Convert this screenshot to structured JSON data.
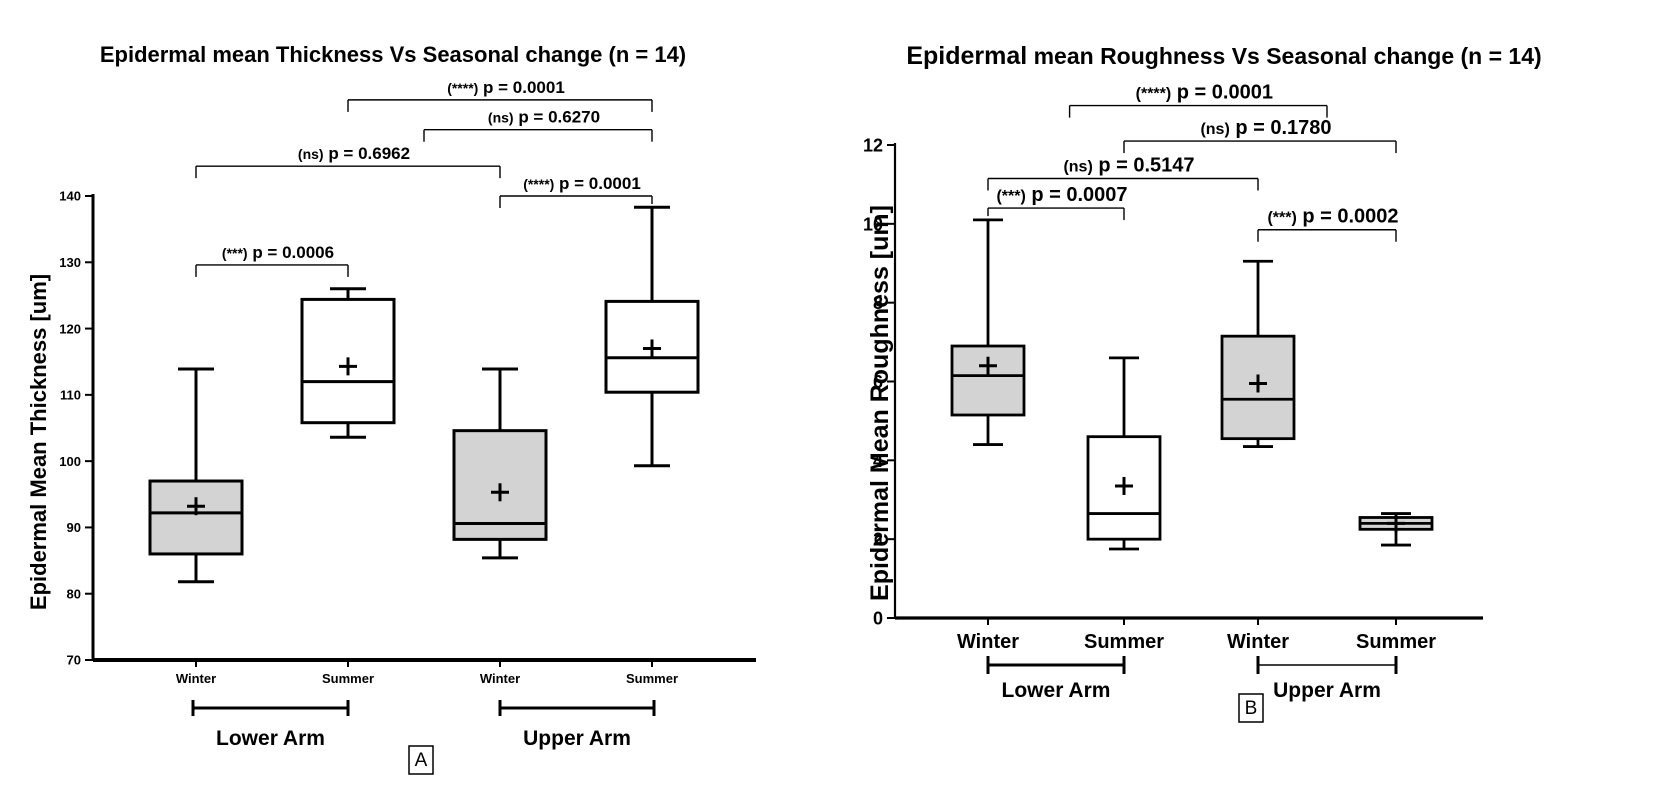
{
  "chart_data": [
    {
      "type": "box",
      "panel": "A",
      "title": "Epidermal mean Thickness Vs Seasonal change (n = 14)",
      "ylabel": "Epidermal Mean Thickness [um]",
      "ylim": [
        70,
        140
      ],
      "yticks": [
        "70",
        "80",
        "90",
        "100",
        "110",
        "120",
        "130",
        "140"
      ],
      "ytick_values": [
        70,
        80,
        90,
        100,
        110,
        120,
        130,
        140
      ],
      "categories": [
        "Winter",
        "Summer",
        "Winter",
        "Summer"
      ],
      "groups": [
        "Lower Arm",
        "Upper Arm"
      ],
      "boxes": [
        {
          "category": "Winter",
          "group": "Lower Arm",
          "min": 81.8,
          "q1": 86.0,
          "median": 92.2,
          "q3": 97.0,
          "max": 113.9,
          "mean": 93.2,
          "fill": "#d3d3d3"
        },
        {
          "category": "Summer",
          "group": "Lower Arm",
          "min": 103.6,
          "q1": 105.8,
          "median": 112.0,
          "q3": 124.4,
          "max": 126.0,
          "mean": 114.3,
          "fill": "#ffffff"
        },
        {
          "category": "Winter",
          "group": "Upper Arm",
          "min": 85.4,
          "q1": 88.2,
          "median": 90.6,
          "q3": 104.6,
          "max": 113.9,
          "mean": 95.3,
          "fill": "#d3d3d3"
        },
        {
          "category": "Summer",
          "group": "Upper Arm",
          "min": 99.3,
          "q1": 110.4,
          "median": 115.6,
          "q3": 124.1,
          "max": 138.3,
          "mean": 117.0,
          "fill": "#ffffff"
        }
      ],
      "comparisons": [
        {
          "from": 0,
          "to": 1,
          "level": 129.6,
          "stars": "(***)",
          "label": "p = 0.0006"
        },
        {
          "from": 2,
          "to": 3,
          "level": 140.0,
          "stars": "(****)",
          "label": "p = 0.0001"
        },
        {
          "from": 0,
          "to": 2,
          "level": 144.5,
          "stars": "(ns)",
          "label": "p = 0.6962"
        },
        {
          "from": 1.5,
          "to": 3,
          "level": 150.0,
          "stars": "(ns)",
          "label": "p = 0.6270"
        },
        {
          "from": 1,
          "to": 3,
          "level": 154.5,
          "stars": "(****)",
          "label": "p = 0.0001"
        }
      ]
    },
    {
      "type": "box",
      "panel": "B",
      "title_bold": "Epidermal",
      "title_rest": " mean Roughness Vs Seasonal change (n = 14)",
      "ylabel": "Epidermal Mean Roughness [um]",
      "ylim": [
        0,
        12
      ],
      "yticks": [
        "0",
        "2",
        "4",
        "6",
        "8",
        "10",
        "12"
      ],
      "ytick_values": [
        0,
        2,
        4,
        6,
        8,
        10,
        12
      ],
      "categories": [
        "Winter",
        "Summer",
        "Winter",
        "Summer"
      ],
      "groups": [
        "Lower Arm",
        "Upper Arm"
      ],
      "boxes": [
        {
          "category": "Winter",
          "group": "Lower Arm",
          "min": 4.4,
          "q1": 5.15,
          "median": 6.15,
          "q3": 6.9,
          "max": 10.1,
          "mean": 6.4,
          "fill": "#d3d3d3"
        },
        {
          "category": "Summer",
          "group": "Lower Arm",
          "min": 1.75,
          "q1": 2.0,
          "median": 2.65,
          "q3": 4.6,
          "max": 6.6,
          "mean": 3.35,
          "fill": "#ffffff"
        },
        {
          "category": "Winter",
          "group": "Upper Arm",
          "min": 4.35,
          "q1": 4.55,
          "median": 5.55,
          "q3": 7.15,
          "max": 9.05,
          "mean": 5.95,
          "fill": "#d3d3d3"
        },
        {
          "category": "Summer",
          "group": "Upper Arm",
          "min": 1.85,
          "q1": 2.25,
          "median": 2.4,
          "q3": 2.55,
          "max": 2.65,
          "mean": 2.4,
          "fill": "#d3d3d3"
        }
      ],
      "comparisons": [
        {
          "from": 2,
          "to": 3,
          "level": 9.85,
          "stars": "(***)",
          "label": "p = 0.0002"
        },
        {
          "from": 0,
          "to": 1,
          "level": 10.4,
          "stars": "(***)",
          "label": "p = 0.0007"
        },
        {
          "from": 0,
          "to": 2,
          "level": 11.15,
          "stars": "(ns)",
          "label": "p = 0.5147"
        },
        {
          "from": 1,
          "to": 3,
          "level": 12.1,
          "stars": "(ns)",
          "label": "p = 0.1780"
        },
        {
          "from": 0.6,
          "to": 2.5,
          "level": 13.0,
          "stars": "(****)",
          "label": "p = 0.0001"
        }
      ]
    }
  ]
}
